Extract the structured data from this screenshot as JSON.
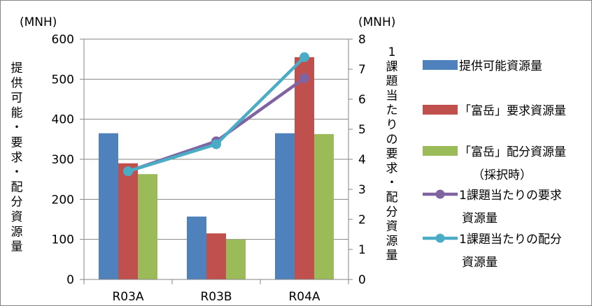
{
  "chart_data": {
    "type": "bar",
    "categories": [
      "R03A",
      "R03B",
      "R04A"
    ],
    "series": [
      {
        "name": "提供可能資源量",
        "kind": "bar",
        "axis": "left",
        "color": "#4F81BD",
        "values": [
          365,
          157,
          365
        ]
      },
      {
        "name": "「富岳」要求資源量",
        "kind": "bar",
        "axis": "left",
        "color": "#C0504D",
        "values": [
          290,
          115,
          555
        ]
      },
      {
        "name": "「富岳」配分資源量",
        "kind": "bar",
        "axis": "left",
        "color": "#9BBB59",
        "values": [
          263,
          100,
          363
        ]
      },
      {
        "name": "1課題当たりの要求資源量",
        "kind": "line",
        "axis": "right",
        "color": "#8064A2",
        "values": [
          3.6,
          4.6,
          6.7
        ]
      },
      {
        "name": "1課題当たりの配分資源量",
        "kind": "line",
        "axis": "right",
        "color": "#4BACC6",
        "values": [
          3.6,
          4.5,
          7.4
        ]
      }
    ],
    "y_left": {
      "unit": "(MNH)",
      "label": "提供可能・要求・配分資源量",
      "min": 0,
      "max": 600,
      "ticks": [
        0,
        100,
        200,
        300,
        400,
        500,
        600
      ]
    },
    "y_right": {
      "unit": "(MNH)",
      "label": "1課題当たりの要求・配分資源量",
      "min": 0,
      "max": 8,
      "ticks": [
        0,
        1,
        2,
        3,
        4,
        5,
        6,
        7,
        8
      ]
    },
    "grid": true,
    "legend_position": "right",
    "legend": [
      {
        "lines": [
          "提供可能資源量"
        ]
      },
      {
        "lines": [
          "「富岳」要求資源量"
        ]
      },
      {
        "lines": [
          "「富岳」配分資源量",
          "（採択時）"
        ]
      },
      {
        "lines": [
          "1課題当たりの要求",
          "資源量"
        ]
      },
      {
        "lines": [
          "1課題当たりの配分",
          "資源量"
        ]
      }
    ]
  }
}
